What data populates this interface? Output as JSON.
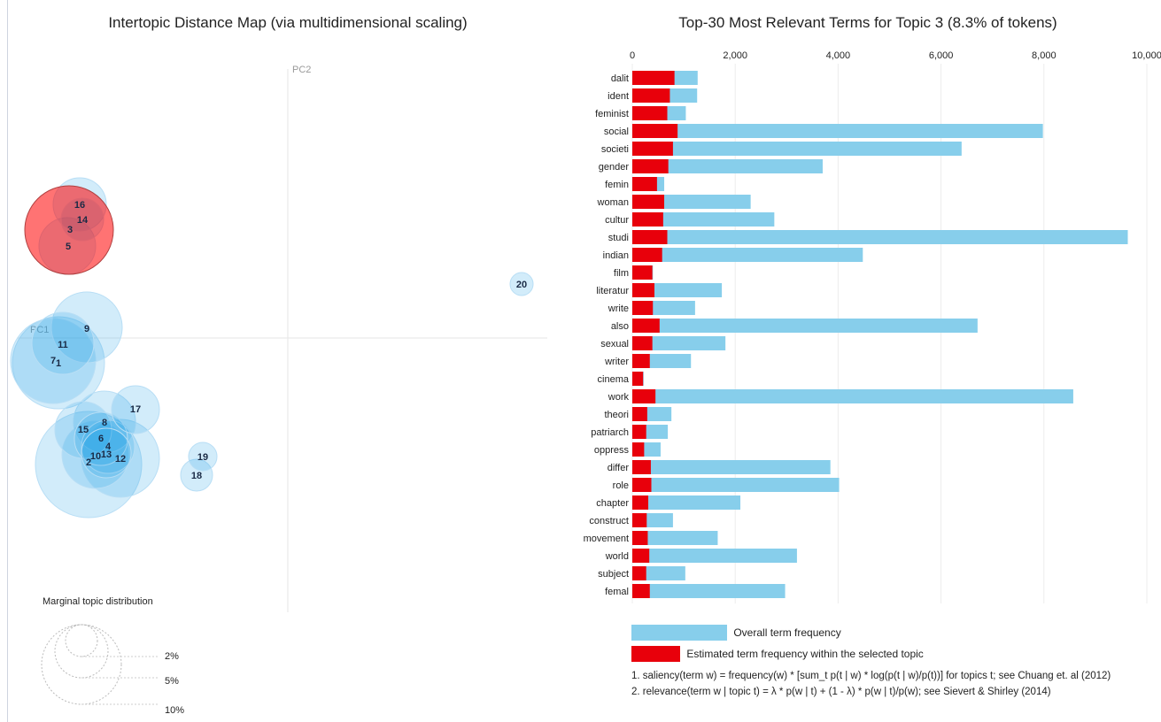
{
  "left_title": "Intertopic Distance Map (via multidimensional scaling)",
  "right_title": "Top-30 Most Relevant Terms for Topic 3 (8.3% of tokens)",
  "colors": {
    "topic_fill": "#1f9ee8",
    "topic_selected": "#ff0000",
    "overall_bar": "#87ceeb",
    "estimated_bar": "#e8000b",
    "axis_line": "#e6e6e6"
  },
  "chart_data": [
    {
      "type": "scatter",
      "title": "Intertopic Distance Map (via multidimensional scaling)",
      "xlabel": "PC1",
      "ylabel": "PC2",
      "selected_topic": 3,
      "points": [
        {
          "label": "1"
        },
        {
          "label": "2"
        },
        {
          "label": "3"
        },
        {
          "label": "4"
        },
        {
          "label": "5"
        },
        {
          "label": "6"
        },
        {
          "label": "7"
        },
        {
          "label": "8"
        },
        {
          "label": "9"
        },
        {
          "label": "10"
        },
        {
          "label": "11"
        },
        {
          "label": "12"
        },
        {
          "label": "13"
        },
        {
          "label": "14"
        },
        {
          "label": "15"
        },
        {
          "label": "16"
        },
        {
          "label": "17"
        },
        {
          "label": "18"
        },
        {
          "label": "19"
        },
        {
          "label": "20"
        }
      ],
      "size_legend": {
        "title": "Marginal topic distribution",
        "labels": [
          "2%",
          "5%",
          "10%"
        ]
      }
    },
    {
      "type": "bar",
      "title": "Top-30 Most Relevant Terms for Topic 3 (8.3% of tokens)",
      "orientation": "horizontal",
      "xlim": [
        0,
        10000
      ],
      "xticks": [
        "0",
        "2,000",
        "4,000",
        "6,000",
        "8,000",
        "10,000"
      ],
      "grid": true,
      "categories": [
        "dalit",
        "ident",
        "feminist",
        "social",
        "societi",
        "gender",
        "femin",
        "woman",
        "cultur",
        "studi",
        "indian",
        "film",
        "literatur",
        "write",
        "also",
        "sexual",
        "writer",
        "cinema",
        "work",
        "theori",
        "patriarch",
        "oppress",
        "differ",
        "role",
        "chapter",
        "construct",
        "movement",
        "world",
        "subject",
        "femal"
      ],
      "series": [
        {
          "name": "Overall term frequency",
          "values": [
            1270,
            1260,
            1040,
            7980,
            6400,
            3700,
            620,
            2300,
            2760,
            9630,
            4480,
            400,
            1740,
            1220,
            6710,
            1810,
            1140,
            220,
            8570,
            760,
            690,
            550,
            3850,
            4020,
            2100,
            790,
            1660,
            3200,
            1030,
            2970
          ]
        },
        {
          "name": "Estimated term frequency within the selected topic",
          "values": [
            820,
            730,
            680,
            880,
            790,
            700,
            480,
            620,
            600,
            680,
            580,
            390,
            430,
            400,
            530,
            390,
            340,
            210,
            450,
            290,
            270,
            230,
            360,
            370,
            310,
            280,
            300,
            330,
            270,
            340
          ]
        }
      ],
      "legend_labels": [
        "Overall term frequency",
        "Estimated term frequency within the selected topic"
      ],
      "notes": [
        "1. saliency(term w) = frequency(w) * [sum_t p(t | w) * log(p(t | w)/p(t))] for topics t; see Chuang et. al (2012)",
        "2. relevance(term w | topic t) = λ * p(w | t) + (1 - λ) * p(w | t)/p(w); see Sievert & Shirley (2014)"
      ]
    }
  ]
}
